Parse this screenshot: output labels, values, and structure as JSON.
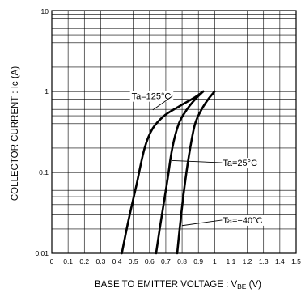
{
  "chart_data": {
    "type": "line",
    "xlabel": "BASE TO EMITTER VOLTAGE : V",
    "xlabel_subscript": "BE",
    "xlabel_unit": " (V)",
    "ylabel": "COLLECTOR CURRENT : Ic (A)",
    "xlim": [
      0,
      1.5
    ],
    "ylim": [
      0.01,
      10
    ],
    "yscale": "log",
    "grid": true,
    "x_ticks": [
      "0",
      "0.1",
      "0.2",
      "0.3",
      "0.4",
      "0.5",
      "0.6",
      "0.7",
      "0.8",
      "0.9",
      "1",
      "1.1",
      "1.2",
      "1.3",
      "1.4",
      "1.5"
    ],
    "y_ticks": [
      "0.01",
      "0.1",
      "1",
      "10"
    ],
    "series": [
      {
        "name": "Ta=125°C",
        "points": [
          [
            0.43,
            0.01
          ],
          [
            0.47,
            0.025
          ],
          [
            0.52,
            0.07
          ],
          [
            0.57,
            0.2
          ],
          [
            0.62,
            0.35
          ],
          [
            0.69,
            0.5
          ],
          [
            0.78,
            0.65
          ],
          [
            0.88,
            0.85
          ],
          [
            0.93,
            1.0
          ]
        ]
      },
      {
        "name": "Ta=25°C",
        "points": [
          [
            0.64,
            0.01
          ],
          [
            0.67,
            0.025
          ],
          [
            0.71,
            0.08
          ],
          [
            0.74,
            0.2
          ],
          [
            0.78,
            0.4
          ],
          [
            0.83,
            0.6
          ],
          [
            0.88,
            0.8
          ],
          [
            0.93,
            1.0
          ]
        ]
      },
      {
        "name": "Ta=−40°C",
        "points": [
          [
            0.77,
            0.01
          ],
          [
            0.79,
            0.025
          ],
          [
            0.82,
            0.08
          ],
          [
            0.85,
            0.2
          ],
          [
            0.88,
            0.4
          ],
          [
            0.92,
            0.6
          ],
          [
            0.96,
            0.8
          ],
          [
            1.0,
            1.0
          ]
        ]
      }
    ],
    "annotations": [
      {
        "text": "Ta=125°C",
        "series": 0,
        "label_x": 0.49,
        "label_y": 0.8,
        "leader_to_x": 0.62,
        "leader_to_y": 0.59
      },
      {
        "text": "Ta=25°C",
        "series": 1,
        "label_x": 1.05,
        "label_y": 0.12,
        "leader_to_x": 0.74,
        "leader_to_y": 0.14
      },
      {
        "text": "Ta=−40°C",
        "series": 2,
        "label_x": 1.05,
        "label_y": 0.0235,
        "leader_to_x": 0.8,
        "leader_to_y": 0.022
      }
    ]
  }
}
